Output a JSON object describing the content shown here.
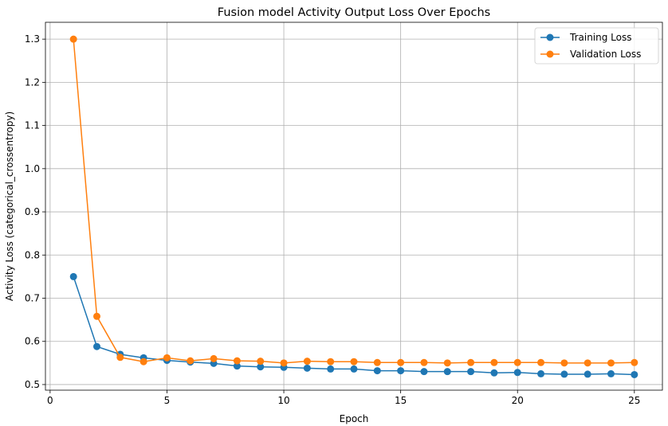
{
  "chart_data": {
    "type": "line",
    "title": "Fusion model Activity Output Loss Over Epochs",
    "xlabel": "Epoch",
    "ylabel": "Activity Loss (categorical_crossentropy)",
    "xlim": [
      -0.2,
      26.2
    ],
    "ylim": [
      0.487,
      1.339
    ],
    "xticks": [
      0,
      5,
      10,
      15,
      20,
      25
    ],
    "yticks": [
      0.5,
      0.6,
      0.7,
      0.8,
      0.9,
      1.0,
      1.1,
      1.2,
      1.3
    ],
    "ytick_labels": [
      "0.5",
      "0.6",
      "0.7",
      "0.8",
      "0.9",
      "1.0",
      "1.1",
      "1.2",
      "1.3"
    ],
    "grid": true,
    "legend_position": "top-right",
    "x": [
      1,
      2,
      3,
      4,
      5,
      6,
      7,
      8,
      9,
      10,
      11,
      12,
      13,
      14,
      15,
      16,
      17,
      18,
      19,
      20,
      21,
      22,
      23,
      24,
      25
    ],
    "series": [
      {
        "name": "Training Loss",
        "color": "#1f77b4",
        "values": [
          0.75,
          0.588,
          0.57,
          0.562,
          0.556,
          0.552,
          0.549,
          0.543,
          0.541,
          0.54,
          0.538,
          0.536,
          0.536,
          0.532,
          0.532,
          0.53,
          0.53,
          0.53,
          0.527,
          0.528,
          0.525,
          0.524,
          0.524,
          0.525,
          0.523
        ]
      },
      {
        "name": "Validation Loss",
        "color": "#ff7f0e",
        "values": [
          1.3,
          0.658,
          0.563,
          0.553,
          0.562,
          0.555,
          0.56,
          0.555,
          0.554,
          0.55,
          0.554,
          0.553,
          0.553,
          0.551,
          0.551,
          0.551,
          0.55,
          0.551,
          0.551,
          0.551,
          0.551,
          0.55,
          0.55,
          0.55,
          0.551
        ]
      }
    ]
  }
}
